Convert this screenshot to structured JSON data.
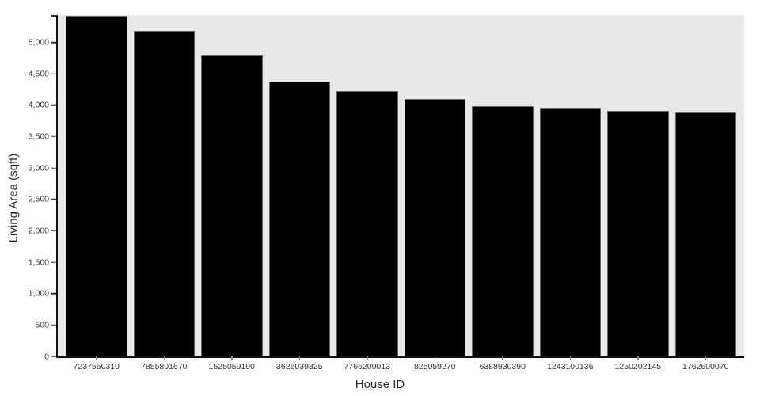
{
  "chart_data": {
    "type": "bar",
    "title": "",
    "xlabel": "House ID",
    "ylabel": "Living Area (sqft)",
    "categories": [
      "7237550310",
      "7855801670",
      "1525059190",
      "3626039325",
      "7766200013",
      "825059270",
      "6388930390",
      "1243100136",
      "1250202145",
      "1762600070"
    ],
    "values": [
      5420,
      5180,
      4790,
      4380,
      4220,
      4100,
      3990,
      3960,
      3910,
      3890
    ],
    "y_ticks": [
      0,
      500,
      1000,
      1500,
      2000,
      2500,
      3000,
      3500,
      4000,
      4500,
      5000
    ],
    "ylim": [
      0,
      5435
    ],
    "grid": false,
    "legend": false,
    "bar_orientation": "vertical",
    "sort": "descending",
    "colors": {
      "bar_fill": "#000000",
      "bar_stroke": "#666666",
      "plot_bg": "#e8e8e8",
      "canvas_bg": "#ffffff",
      "axis_line": "#111111",
      "tick_color": "#333333",
      "label_color": "#333333",
      "title_color": "#2b2b2b"
    }
  }
}
